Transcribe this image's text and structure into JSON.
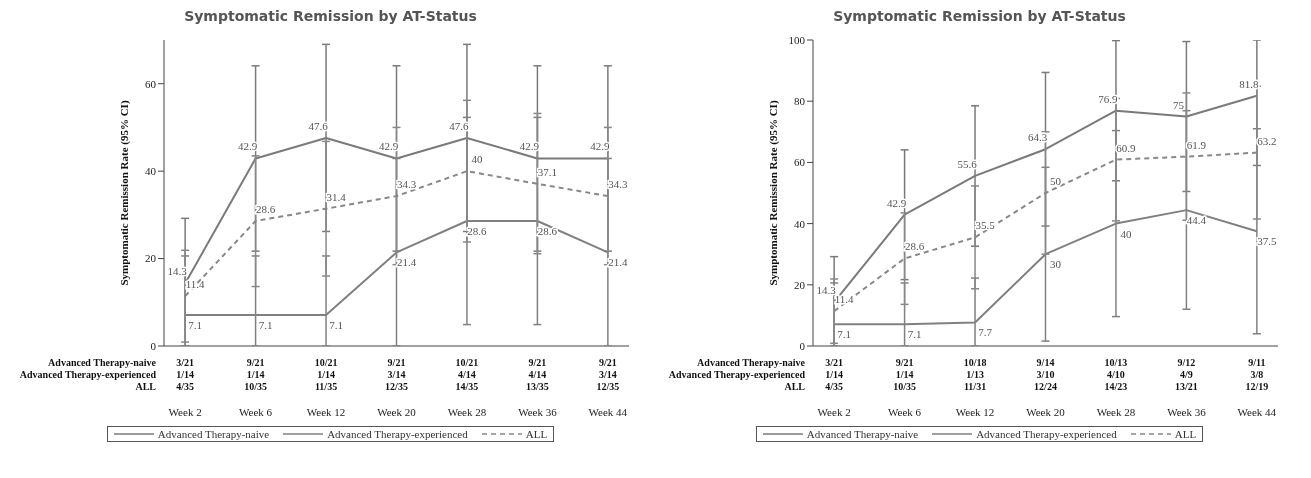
{
  "chart_data": [
    {
      "type": "line",
      "title": "Symptomatic Remission by AT-Status",
      "ylabel": "Symptomatic Remission Rate (95% CI)",
      "categories": [
        "Week 2",
        "Week 6",
        "Week 12",
        "Week 20",
        "Week 28",
        "Week 36",
        "Week 44"
      ],
      "ylim": [
        0,
        70
      ],
      "yticks": [
        0,
        20,
        40,
        60
      ],
      "legend": "bottom",
      "marker": "none",
      "data_labels": true,
      "series": [
        {
          "name": "Advanced Therapy-naive",
          "color": "#7a7a7a",
          "line_style": "solid",
          "values": [
            14.3,
            42.9,
            47.6,
            42.9,
            47.6,
            42.9,
            42.9
          ],
          "errors": [
            [
              0,
              29.2
            ],
            [
              21.7,
              64.1
            ],
            [
              26.2,
              69.0
            ],
            [
              21.7,
              64.1
            ],
            [
              26.2,
              69.0
            ],
            [
              21.7,
              64.1
            ],
            [
              21.7,
              64.1
            ]
          ]
        },
        {
          "name": "Advanced Therapy-experienced",
          "color": "#808080",
          "line_style": "solid",
          "values": [
            7.1,
            7.1,
            7.1,
            21.4,
            28.6,
            28.6,
            21.4
          ],
          "errors": [
            [
              0,
              20.6
            ],
            [
              0,
              20.6
            ],
            [
              0,
              20.6
            ],
            [
              0,
              42.9
            ],
            [
              4.9,
              52.3
            ],
            [
              4.9,
              52.3
            ],
            [
              0,
              42.9
            ]
          ]
        },
        {
          "name": "ALL",
          "color": "#888888",
          "line_style": "dashed",
          "values": [
            11.4,
            28.6,
            31.4,
            34.3,
            40,
            37.1,
            34.3
          ],
          "errors": [
            [
              0.9,
              21.9
            ],
            [
              13.6,
              43.5
            ],
            [
              16.0,
              46.8
            ],
            [
              18.6,
              50.0
            ],
            [
              23.8,
              56.2
            ],
            [
              21.1,
              53.2
            ],
            [
              18.6,
              50.0
            ]
          ]
        }
      ],
      "annotations": [
        "Advanced Therapy-naive",
        "3/21",
        "9/21",
        "10/21",
        "9/21",
        "10/21",
        "9/21",
        "9/21",
        "Advanced Therapy-experienced",
        "1/14",
        "1/14",
        "1/14",
        "3/14",
        "4/14",
        "4/14",
        "3/14",
        "ALL",
        "4/35",
        "10/35",
        "11/35",
        "12/35",
        "14/35",
        "13/35",
        "12/35"
      ]
    },
    {
      "type": "line",
      "title": "Symptomatic Remission by AT-Status",
      "ylabel": "Symptomatic Remission Rate (95% CI)",
      "categories": [
        "Week 2",
        "Week 6",
        "Week 12",
        "Week 20",
        "Week 28",
        "Week 36",
        "Week 44"
      ],
      "ylim": [
        0,
        100
      ],
      "yticks": [
        0,
        20,
        40,
        60,
        80,
        100
      ],
      "legend": "bottom",
      "marker": "none",
      "data_labels": true,
      "series": [
        {
          "name": "Advanced Therapy-naive",
          "color": "#7a7a7a",
          "line_style": "solid",
          "values": [
            14.3,
            42.9,
            55.6,
            64.3,
            76.9,
            75,
            81.8
          ],
          "errors": [
            [
              0,
              29.2
            ],
            [
              21.7,
              64.1
            ],
            [
              32.6,
              78.5
            ],
            [
              39.2,
              89.4
            ],
            [
              54.0,
              99.8
            ],
            [
              50.5,
              99.5
            ],
            [
              59.0,
              100
            ]
          ]
        },
        {
          "name": "Advanced Therapy-experienced",
          "color": "#808080",
          "line_style": "solid",
          "values": [
            7.1,
            7.1,
            7.7,
            30,
            40,
            44.4,
            37.5
          ],
          "errors": [
            [
              0,
              20.6
            ],
            [
              0,
              20.6
            ],
            [
              0,
              22.2
            ],
            [
              1.6,
              58.4
            ],
            [
              9.6,
              70.4
            ],
            [
              12.0,
              76.9
            ],
            [
              4.0,
              71.0
            ]
          ]
        },
        {
          "name": "ALL",
          "color": "#888888",
          "line_style": "dashed",
          "values": [
            11.4,
            28.6,
            35.5,
            50,
            60.9,
            61.9,
            63.2
          ],
          "errors": [
            [
              0.9,
              21.9
            ],
            [
              13.6,
              43.5
            ],
            [
              18.7,
              52.3
            ],
            [
              30.0,
              70.0
            ],
            [
              40.9,
              80.9
            ],
            [
              41.1,
              82.7
            ],
            [
              41.5,
              84.9
            ]
          ]
        }
      ],
      "annotations": [
        "Advanced Therapy-naive",
        "3/21",
        "9/21",
        "10/18",
        "9/14",
        "10/13",
        "9/12",
        "9/11",
        "Advanced Therapy-experienced",
        "1/14",
        "1/14",
        "1/13",
        "3/10",
        "4/10",
        "4/9",
        "3/8",
        "ALL",
        "4/35",
        "10/35",
        "11/31",
        "12/24",
        "14/23",
        "13/21",
        "12/19"
      ]
    }
  ]
}
